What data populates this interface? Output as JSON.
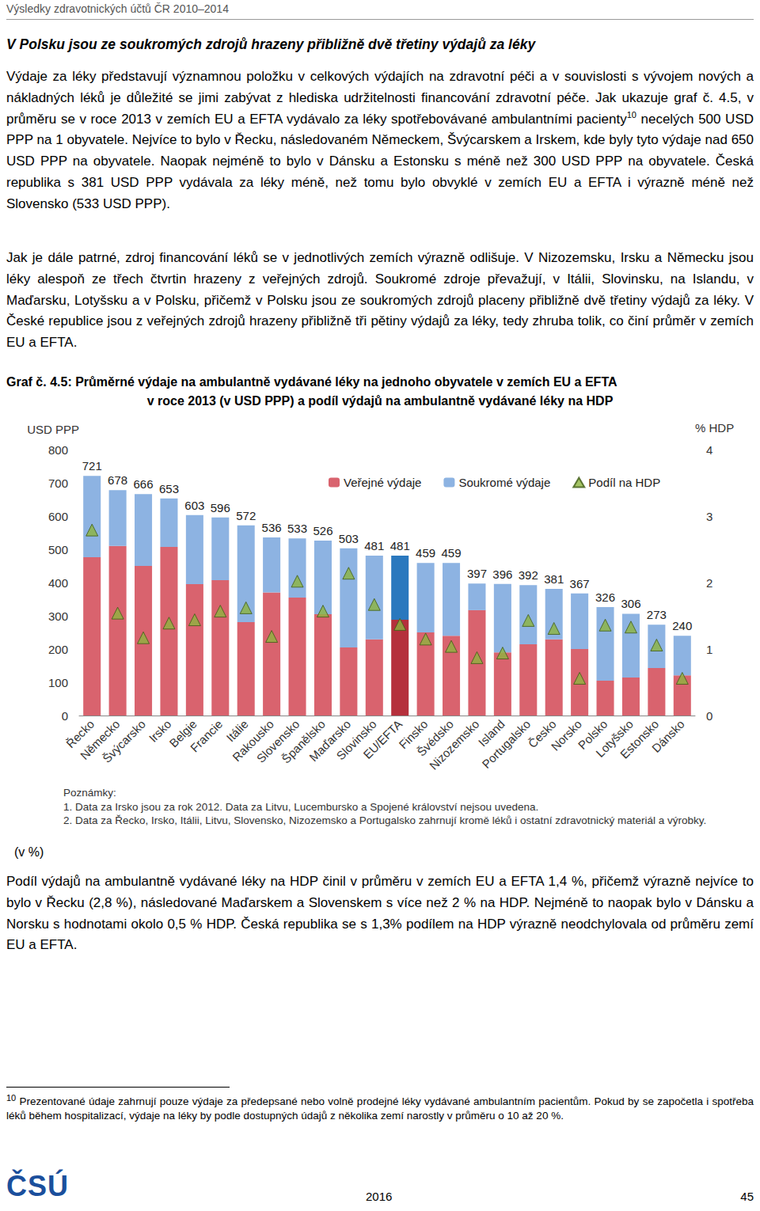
{
  "header": "Výsledky zdravotnických účtů ČR 2010–2014",
  "heading": "V Polsku jsou ze soukromých zdrojů hrazeny přibližně dvě třetiny výdajů za léky",
  "paragraph1": {
    "before": "Výdaje za léky představují významnou položku v celkových výdajích na zdravotní péči a v souvislosti s vývojem nových a nákladných léků je důležité se jimi zabývat z hlediska udržitelnosti financování zdravotní péče. Jak ukazuje graf č. 4.5, v průměru se v roce 2013 v zemích EU a EFTA vydávalo za léky spotřebovávané ambulantními pacienty",
    "footnote_ref": "10",
    "after": " necelých 500 USD PPP na 1 obyvatele. Nejvíce to bylo v Řecku, následovaném Německem, Švýcarskem a Irskem, kde byly tyto výdaje nad 650 USD PPP na obyvatele. Naopak nejméně to bylo v Dánsku a Estonsku s méně než 300 USD PPP na obyvatele. Česká republika s 381 USD PPP vydávala za léky méně, než tomu bylo obvyklé v zemích EU a EFTA i výrazně méně než Slovensko (533 USD PPP)."
  },
  "paragraph2": "Jak je dále patrné, zdroj financování léků se v jednotlivých zemích výrazně odlišuje. V Nizozemsku, Irsku a Německu jsou léky alespoň ze třech čtvrtin hrazeny z veřejných zdrojů. Soukromé zdroje převažují, v Itálii, Slovinsku, na Islandu, v Maďarsku, Lotyšsku a v Polsku, přičemž v Polsku jsou ze soukromých zdrojů placeny přibližně dvě třetiny výdajů za léky. V České republice jsou z veřejných zdrojů hrazeny přibližně tři pětiny výdajů za léky, tedy zhruba tolik, co činí průměr v zemích EU a EFTA.",
  "caption_line1": "Graf č. 4.5: Průměrné výdaje na ambulantně vydávané léky na jednoho obyvatele v zemích EU a EFTA",
  "caption_line2": "v roce 2013 (v USD PPP) a podíl výdajů na ambulantně vydávané léky na HDP",
  "chart_data": {
    "type": "bar",
    "stacked": true,
    "grid": false,
    "legend": "top",
    "y_label": "USD PPP",
    "y2_label": "% HDP",
    "categories": [
      "Řecko",
      "Německo",
      "Švýcarsko",
      "Irsko",
      "Belgie",
      "Francie",
      "Itálie",
      "Rakousko",
      "Slovensko",
      "Španělsko",
      "Maďarsko",
      "Slovinsko",
      "EU/EFTA",
      "Finsko",
      "Švédsko",
      "Nizozemsko",
      "Island",
      "Portugalsko",
      "Česko",
      "Norsko",
      "Polsko",
      "Lotyšsko",
      "Estonsko",
      "Dánsko"
    ],
    "totals": [
      721,
      678,
      666,
      653,
      603,
      596,
      572,
      536,
      533,
      526,
      503,
      481,
      481,
      459,
      459,
      397,
      396,
      392,
      381,
      367,
      326,
      306,
      273,
      240
    ],
    "series": [
      {
        "name": "Veřejné výdaje",
        "type": "bar",
        "colors": [
          "#d9636e",
          "#d9636e",
          "#d9636e",
          "#d9636e",
          "#d9636e",
          "#d9636e",
          "#d9636e",
          "#d9636e",
          "#d9636e",
          "#d9636e",
          "#d9636e",
          "#d9636e",
          "#b5303c",
          "#d9636e",
          "#d9636e",
          "#d9636e",
          "#d9636e",
          "#d9636e",
          "#d9636e",
          "#d9636e",
          "#d9636e",
          "#d9636e",
          "#d9636e",
          "#d9636e"
        ],
        "values": [
          476,
          510,
          450,
          507,
          395,
          407,
          281,
          370,
          355,
          305,
          205,
          229,
          288,
          250,
          240,
          317,
          190,
          214,
          229,
          200,
          105,
          114,
          143,
          121
        ]
      },
      {
        "name": "Soukromé výdaje",
        "type": "bar",
        "colors": [
          "#8db3e2",
          "#8db3e2",
          "#8db3e2",
          "#8db3e2",
          "#8db3e2",
          "#8db3e2",
          "#8db3e2",
          "#8db3e2",
          "#8db3e2",
          "#8db3e2",
          "#8db3e2",
          "#8db3e2",
          "#2a78be",
          "#8db3e2",
          "#8db3e2",
          "#8db3e2",
          "#8db3e2",
          "#8db3e2",
          "#8db3e2",
          "#8db3e2",
          "#8db3e2",
          "#8db3e2",
          "#8db3e2",
          "#8db3e2"
        ],
        "values": [
          245,
          168,
          216,
          146,
          208,
          189,
          291,
          166,
          178,
          221,
          298,
          252,
          193,
          209,
          219,
          80,
          206,
          178,
          152,
          167,
          221,
          192,
          130,
          119
        ]
      },
      {
        "name": "Podíl na HDP",
        "type": "scatter",
        "marker": "triangle",
        "color": "#8db43e",
        "axis": "y2",
        "values": [
          2.79,
          1.54,
          1.17,
          1.39,
          1.44,
          1.57,
          1.62,
          1.19,
          2.02,
          1.57,
          2.14,
          1.67,
          1.37,
          1.15,
          1.04,
          0.87,
          0.94,
          1.43,
          1.31,
          0.56,
          1.36,
          1.33,
          1.06,
          0.56
        ]
      }
    ],
    "ylim": [
      0,
      800
    ],
    "yticks": [
      0,
      100,
      200,
      300,
      400,
      500,
      600,
      700,
      800
    ],
    "y2lim": [
      0,
      4
    ],
    "y2ticks": [
      0,
      1,
      2,
      3,
      4
    ]
  },
  "notes": [
    "Poznámky:",
    "1. Data za Irsko jsou za rok 2012. Data za Litvu, Lucembursko a Spojené království nejsou uvedena.",
    "2. Data za Řecko, Irsko, Itálii, Litvu, Slovensko, Nizozemsko a Portugalsko zahrnují kromě léků i ostatní zdravotnický materiál a výrobky."
  ],
  "unit_note": "(v %)",
  "paragraph3": "Podíl výdajů na ambulantně vydávané léky na HDP činil v průměru v zemích EU a EFTA 1,4 %, přičemž výrazně nejvíce to bylo v Řecku (2,8 %), následované Maďarskem a Slovenskem s více než 2 % na HDP. Nejméně to naopak bylo v Dánsku a Norsku s hodnotami okolo 0,5 % HDP. Česká republika se s 1,3% podílem na HDP výrazně neodchylovala od průměru zemí EU a EFTA.",
  "footnote": {
    "number": "10",
    "text": "Prezentované údaje zahrnují pouze výdaje za předepsané nebo volně prodejné léky vydávané ambulantním pacientům. Pokud by se započetla i spotřeba léků během hospitalizací, výdaje na léky by podle dostupných údajů z několika zemí narostly v průměru o 10 až 20 %."
  },
  "footer": {
    "logo": "ČSÚ",
    "year": "2016",
    "page": "45"
  }
}
